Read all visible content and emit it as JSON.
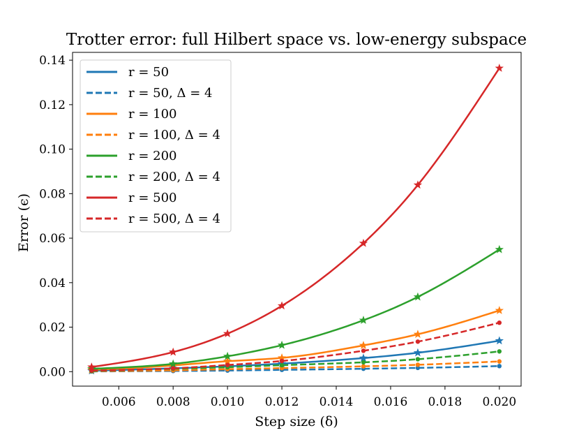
{
  "chart_data": {
    "type": "line",
    "title": "Trotter error: full Hilbert space vs. low-energy subspace",
    "xlabel": "Step size (δ)",
    "ylabel": "Error (ϵ)",
    "xlim": [
      0.0043,
      0.0208
    ],
    "ylim": [
      -0.0065,
      0.1435
    ],
    "xticks": [
      0.006,
      0.008,
      0.01,
      0.012,
      0.014,
      0.016,
      0.018,
      0.02
    ],
    "xtick_labels": [
      "0.006",
      "0.008",
      "0.010",
      "0.012",
      "0.014",
      "0.016",
      "0.018",
      "0.020"
    ],
    "yticks": [
      0.0,
      0.02,
      0.04,
      0.06,
      0.08,
      0.1,
      0.12,
      0.14
    ],
    "ytick_labels": [
      "0.00",
      "0.02",
      "0.04",
      "0.06",
      "0.08",
      "0.10",
      "0.12",
      "0.14"
    ],
    "grid": false,
    "legend_position": "top-left",
    "x": [
      0.005,
      0.008,
      0.01,
      0.012,
      0.015,
      0.017,
      0.02
    ],
    "series": [
      {
        "name": "r = 50",
        "color": "#1f77b4",
        "style": "solid",
        "marker": "star",
        "values": [
          0.0004,
          0.0015,
          0.0024,
          0.0036,
          0.0061,
          0.0085,
          0.0139
        ]
      },
      {
        "name": "r = 50, Δ = 4",
        "color": "#1f77b4",
        "style": "dashed",
        "marker": "dot",
        "values": [
          0.0001,
          0.0003,
          0.0005,
          0.0008,
          0.0013,
          0.0017,
          0.0025
        ]
      },
      {
        "name": "r = 100",
        "color": "#ff7f0e",
        "style": "solid",
        "marker": "star",
        "values": [
          0.0008,
          0.0028,
          0.0047,
          0.0062,
          0.0118,
          0.0168,
          0.0275
        ]
      },
      {
        "name": "r = 100, Δ = 4",
        "color": "#ff7f0e",
        "style": "dashed",
        "marker": "dot",
        "values": [
          0.0002,
          0.0006,
          0.0011,
          0.0016,
          0.0024,
          0.0031,
          0.0046
        ]
      },
      {
        "name": "r = 200",
        "color": "#2ca02c",
        "style": "solid",
        "marker": "star",
        "values": [
          0.0013,
          0.0035,
          0.0069,
          0.0119,
          0.0231,
          0.0336,
          0.0549
        ]
      },
      {
        "name": "r = 200, Δ = 4",
        "color": "#2ca02c",
        "style": "dashed",
        "marker": "dot",
        "values": [
          0.0003,
          0.0013,
          0.002,
          0.0029,
          0.0042,
          0.0056,
          0.0091
        ]
      },
      {
        "name": "r = 500",
        "color": "#d62728",
        "style": "solid",
        "marker": "star",
        "values": [
          0.0021,
          0.0088,
          0.0171,
          0.0296,
          0.0577,
          0.0839,
          0.1364
        ]
      },
      {
        "name": "r = 500, Δ = 4",
        "color": "#d62728",
        "style": "dashed",
        "marker": "dot",
        "values": [
          0.0005,
          0.0015,
          0.003,
          0.0048,
          0.0094,
          0.0135,
          0.022
        ]
      }
    ]
  }
}
